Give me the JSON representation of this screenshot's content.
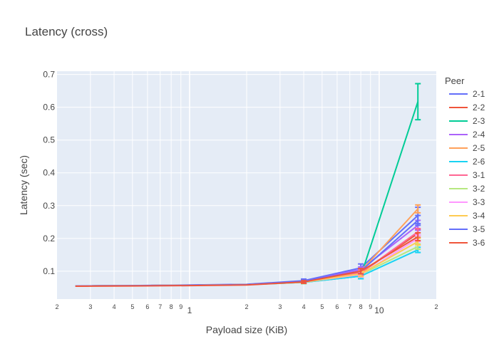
{
  "chart_data": {
    "type": "line",
    "title": "Latency (cross)",
    "xlabel": "Payload size (KiB)",
    "ylabel": "Latency (sec)",
    "x_scale": "log",
    "xlim": [
      0.2,
      20
    ],
    "ylim": [
      0.015,
      0.71
    ],
    "grid": true,
    "legend_title": "Peer",
    "legend_position": "right",
    "x_tick_labels": [
      {
        "v": 0.2,
        "t": "2",
        "minor": true
      },
      {
        "v": 0.3,
        "t": "3",
        "minor": true
      },
      {
        "v": 0.4,
        "t": "4",
        "minor": true
      },
      {
        "v": 0.5,
        "t": "5",
        "minor": true
      },
      {
        "v": 0.6,
        "t": "6",
        "minor": true
      },
      {
        "v": 0.7,
        "t": "7",
        "minor": true
      },
      {
        "v": 0.8,
        "t": "8",
        "minor": true
      },
      {
        "v": 0.9,
        "t": "9",
        "minor": true
      },
      {
        "v": 1,
        "t": "1",
        "minor": false
      },
      {
        "v": 2,
        "t": "2",
        "minor": true
      },
      {
        "v": 3,
        "t": "3",
        "minor": true
      },
      {
        "v": 4,
        "t": "4",
        "minor": true
      },
      {
        "v": 5,
        "t": "5",
        "minor": true
      },
      {
        "v": 6,
        "t": "6",
        "minor": true
      },
      {
        "v": 7,
        "t": "7",
        "minor": true
      },
      {
        "v": 8,
        "t": "8",
        "minor": true
      },
      {
        "v": 9,
        "t": "9",
        "minor": true
      },
      {
        "v": 10,
        "t": "10",
        "minor": false
      },
      {
        "v": 20,
        "t": "2",
        "minor": true
      }
    ],
    "y_tick_labels": [
      {
        "v": 0.1,
        "t": "0.1"
      },
      {
        "v": 0.2,
        "t": "0.2"
      },
      {
        "v": 0.3,
        "t": "0.3"
      },
      {
        "v": 0.4,
        "t": "0.4"
      },
      {
        "v": 0.5,
        "t": "0.5"
      },
      {
        "v": 0.6,
        "t": "0.6"
      },
      {
        "v": 0.7,
        "t": "0.7"
      }
    ],
    "x": [
      0.25,
      0.5,
      1,
      2,
      4,
      8,
      16
    ],
    "series": [
      {
        "name": "2-1",
        "color": "#636efa",
        "values": [
          0.055,
          0.056,
          0.058,
          0.06,
          0.071,
          0.11,
          0.27
        ],
        "error": [
          0,
          0,
          0,
          0,
          0.005,
          0.012,
          0.025
        ]
      },
      {
        "name": "2-2",
        "color": "#EF553B",
        "values": [
          0.055,
          0.056,
          0.057,
          0.059,
          0.068,
          0.095,
          0.215
        ],
        "error": [
          0,
          0,
          0,
          0,
          0.004,
          0.008,
          0.012
        ]
      },
      {
        "name": "2-3",
        "color": "#00cc96",
        "values": [
          0.055,
          0.056,
          0.057,
          0.059,
          0.066,
          0.085,
          0.617
        ],
        "error": [
          0,
          0,
          0,
          0,
          0.004,
          0.008,
          0.055
        ]
      },
      {
        "name": "2-4",
        "color": "#ab63fa",
        "values": [
          0.055,
          0.056,
          0.057,
          0.059,
          0.069,
          0.105,
          0.24
        ],
        "error": [
          0,
          0,
          0,
          0,
          0.004,
          0.008,
          0.015
        ]
      },
      {
        "name": "2-5",
        "color": "#FFA15A",
        "values": [
          0.055,
          0.056,
          0.057,
          0.059,
          0.069,
          0.1,
          0.29
        ],
        "error": [
          0,
          0,
          0,
          0,
          0.004,
          0.008,
          0.012
        ]
      },
      {
        "name": "2-6",
        "color": "#19d3f3",
        "values": [
          0.055,
          0.056,
          0.057,
          0.059,
          0.066,
          0.085,
          0.165
        ],
        "error": [
          0,
          0,
          0,
          0,
          0.004,
          0.008,
          0.008
        ]
      },
      {
        "name": "3-1",
        "color": "#FF6692",
        "values": [
          0.055,
          0.056,
          0.057,
          0.059,
          0.068,
          0.095,
          0.22
        ],
        "error": [
          0,
          0,
          0,
          0,
          0.004,
          0.008,
          0.01
        ]
      },
      {
        "name": "3-2",
        "color": "#B6E880",
        "values": [
          0.055,
          0.056,
          0.057,
          0.059,
          0.066,
          0.09,
          0.175
        ],
        "error": [
          0,
          0,
          0,
          0,
          0.004,
          0.008,
          0.008
        ]
      },
      {
        "name": "3-3",
        "color": "#FF97FF",
        "values": [
          0.055,
          0.056,
          0.057,
          0.059,
          0.067,
          0.09,
          0.2
        ],
        "error": [
          0,
          0,
          0,
          0,
          0.004,
          0.008,
          0.01
        ]
      },
      {
        "name": "3-4",
        "color": "#FECB52",
        "values": [
          0.055,
          0.056,
          0.057,
          0.059,
          0.067,
          0.092,
          0.19
        ],
        "error": [
          0,
          0,
          0,
          0,
          0.004,
          0.008,
          0.01
        ]
      },
      {
        "name": "3-5",
        "color": "#636efa",
        "values": [
          0.055,
          0.056,
          0.057,
          0.059,
          0.07,
          0.1,
          0.255
        ],
        "error": [
          0,
          0,
          0,
          0,
          0.004,
          0.008,
          0.015
        ]
      },
      {
        "name": "3-6",
        "color": "#EF553B",
        "values": [
          0.054,
          0.055,
          0.056,
          0.058,
          0.067,
          0.1,
          0.205
        ],
        "error": [
          0,
          0,
          0,
          0,
          0.004,
          0.008,
          0.012
        ]
      }
    ]
  }
}
